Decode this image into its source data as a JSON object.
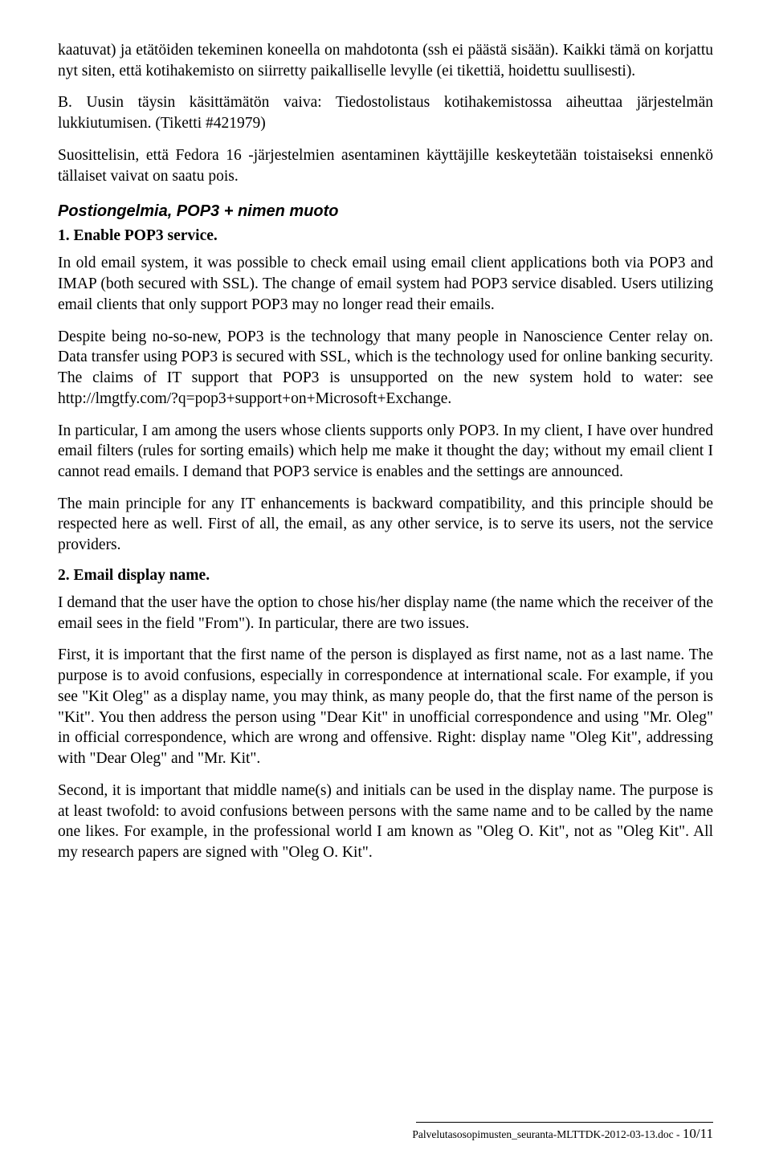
{
  "para1": "kaatuvat) ja etätöiden tekeminen koneella on mahdotonta (ssh ei päästä sisään). Kaikki tämä on korjattu nyt siten, että kotihakemisto on siirretty paikalliselle levylle (ei tikettiä, hoidettu suullisesti).",
  "para2": "B. Uusin täysin käsittämätön vaiva: Tiedostolistaus kotihakemistossa aiheuttaa järjestelmän lukkiutumisen. (Tiketti #421979)",
  "para3": "Suosittelisin, että Fedora 16 -järjestelmien asentaminen käyttäjille keskeytetään toistaiseksi ennenkö tällaiset vaivat on saatu pois.",
  "heading1": "Postiongelmia, POP3 + nimen muoto",
  "sub1": "1. Enable POP3 service.",
  "para4": "In old email system, it was possible to check email using email client applications both via POP3 and IMAP (both secured with SSL). The change of email system had POP3 service disabled. Users utilizing email clients that only support POP3 may no longer read their emails.",
  "para5": "Despite being no-so-new, POP3 is the technology that many people in Nanoscience Center relay on. Data transfer using POP3 is secured with SSL, which is the technology used for online banking security. The claims of IT support that POP3 is unsupported on the new system hold to water: see http://lmgtfy.com/?q=pop3+support+on+Microsoft+Exchange.",
  "para6": "In particular, I am among the users whose clients supports only POP3. In my client, I have over hundred email filters (rules for sorting emails) which help me make it thought the day; without my email client I cannot read emails.  I demand that POP3 service is enables and the settings are announced.",
  "para7": "The main principle for any IT enhancements is  backward compatibility, and this principle should be respected here as well. First of all, the email, as any other service, is to serve its users, not the service providers.",
  "sub2": "2. Email display name.",
  "para8": "I demand that the user have the option to chose his/her display name (the name which the receiver of the email sees in the field \"From\"). In particular, there are two issues.",
  "para9": "First, it is important that the first name of the person is displayed as first name, not as a last name. The purpose is to avoid confusions, especially in correspondence at international scale. For example, if you see \"Kit Oleg\" as a display name, you may think, as many people do, that the first name of the person is \"Kit\". You then address the person using \"Dear Kit\" in unofficial correspondence and using \"Mr. Oleg\" in official correspondence, which are wrong and offensive. Right: display name \"Oleg Kit\", addressing with \"Dear Oleg\" and \"Mr. Kit\".",
  "para10": "Second, it is important that middle name(s) and initials can  be used in the display name. The purpose is at least twofold: to avoid confusions between persons with the same name and to be called by the name one likes. For example, in the professional world I am known as \"Oleg O. Kit\", not as \"Oleg Kit\". All my research papers are signed with \"Oleg O. Kit\".",
  "footer_doc": "Palvelutasosopimusten_seuranta-MLTTDK-2012-03-13.doc - ",
  "footer_page": "10/11"
}
